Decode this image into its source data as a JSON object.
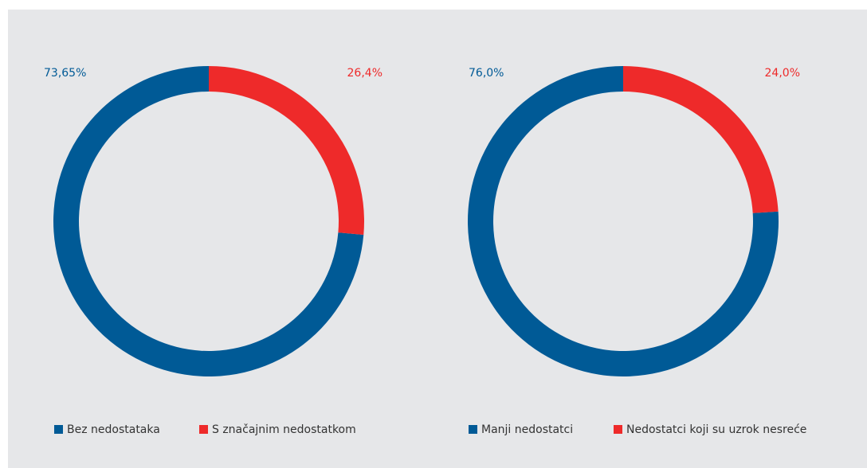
{
  "chart_data": [
    {
      "type": "pie",
      "categories": [
        "Bez nedostataka",
        "S značajnim nedostatkom"
      ],
      "values": [
        73.65,
        26.4
      ],
      "value_labels": [
        "73,65%",
        "26,4%"
      ],
      "colors": [
        "#005a96",
        "#ee2a2a"
      ]
    },
    {
      "type": "pie",
      "categories": [
        "Manji nedostatci",
        "Nedostatci koji su uzrok nesreće"
      ],
      "values": [
        76.0,
        24.0
      ],
      "value_labels": [
        "76,0%",
        "24,0%"
      ],
      "colors": [
        "#005a96",
        "#ee2a2a"
      ]
    }
  ]
}
